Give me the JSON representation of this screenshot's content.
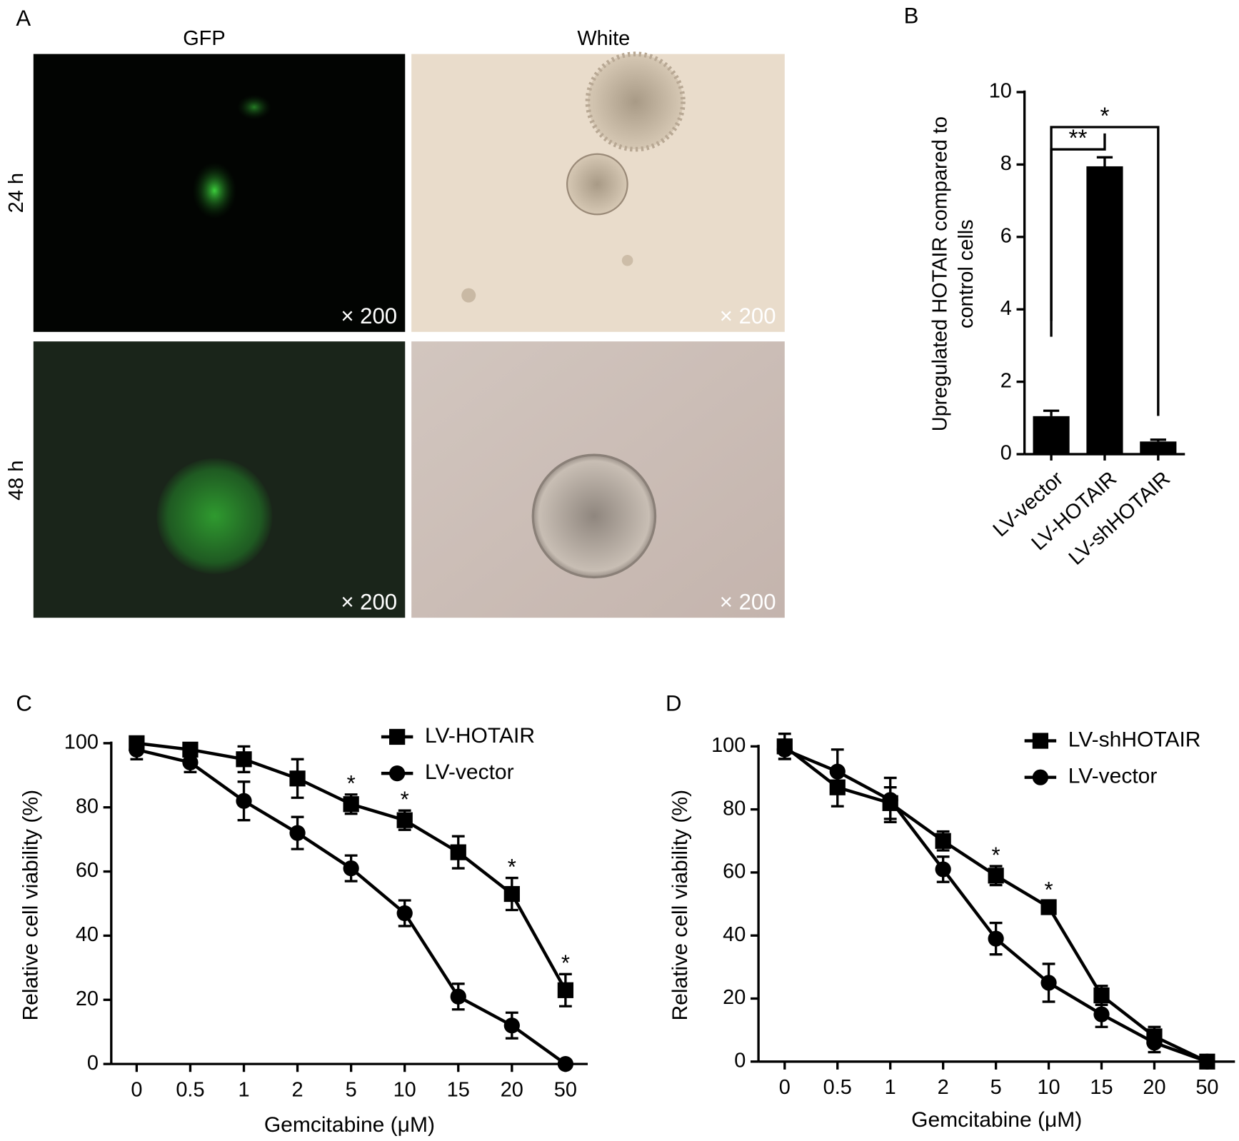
{
  "panel_a": {
    "label": "A",
    "columns": [
      "GFP",
      "White"
    ],
    "rows": [
      "24 h",
      "48 h"
    ],
    "magnification": [
      "× 200",
      "× 200",
      "× 200",
      "× 200"
    ]
  },
  "chart_data": [
    {
      "type": "bar",
      "label": "B",
      "ylabel": [
        "Upregulated HOTAIR compared to",
        "control cells"
      ],
      "categories": [
        "LV-vector",
        "LV-HOTAIR",
        "LV-shHOTAIR"
      ],
      "values": [
        1.05,
        7.95,
        0.35
      ],
      "errors": [
        0.15,
        0.25,
        0.05
      ],
      "color": "#000000",
      "ylim": [
        0,
        10
      ],
      "yticks": [
        0,
        2,
        4,
        6,
        8,
        10
      ],
      "annotations": [
        {
          "text": "**",
          "between": [
            "LV-vector",
            "LV-HOTAIR"
          ]
        },
        {
          "text": "*",
          "between": [
            "LV-vector",
            "LV-shHOTAIR"
          ]
        }
      ]
    },
    {
      "type": "line",
      "label": "C",
      "xlabel": "Gemcitabine (μM)",
      "ylabel": "Relative cell viability (%)",
      "categories": [
        "0",
        "0.5",
        "1",
        "2",
        "5",
        "10",
        "15",
        "20",
        "50"
      ],
      "series": [
        {
          "name": "LV-HOTAIR",
          "marker": "square",
          "color": "#000000",
          "values": [
            100,
            98,
            95,
            89,
            81,
            76,
            66,
            53,
            23
          ],
          "errors": [
            2,
            2,
            4,
            6,
            3,
            3,
            5,
            5,
            5
          ]
        },
        {
          "name": "LV-vector",
          "marker": "circle",
          "color": "#000000",
          "values": [
            98,
            94,
            82,
            72,
            61,
            47,
            21,
            12,
            0
          ],
          "errors": [
            3,
            3,
            6,
            5,
            4,
            4,
            4,
            4,
            0
          ]
        }
      ],
      "significance": [
        null,
        null,
        null,
        null,
        "*",
        "*",
        null,
        "*",
        "*"
      ],
      "ylim": [
        0,
        100
      ],
      "yticks": [
        0,
        20,
        40,
        60,
        80,
        100
      ],
      "legend": "upper right"
    },
    {
      "type": "line",
      "label": "D",
      "xlabel": "Gemcitabine (μM)",
      "ylabel": "Relative cell viability (%)",
      "categories": [
        "0",
        "0.5",
        "1",
        "2",
        "5",
        "10",
        "15",
        "20",
        "50"
      ],
      "series": [
        {
          "name": "LV-shHOTAIR",
          "marker": "square",
          "color": "#000000",
          "values": [
            100,
            87,
            82,
            70,
            59,
            49,
            21,
            8,
            0
          ],
          "errors": [
            4,
            6,
            5,
            3,
            3,
            2,
            3,
            3,
            1
          ]
        },
        {
          "name": "LV-vector",
          "marker": "circle",
          "color": "#000000",
          "values": [
            99,
            92,
            83,
            61,
            39,
            25,
            15,
            6,
            0
          ],
          "errors": [
            3,
            7,
            7,
            4,
            5,
            6,
            4,
            3,
            1
          ]
        }
      ],
      "significance": [
        null,
        null,
        null,
        null,
        "*",
        "*",
        null,
        null,
        null
      ],
      "ylim": [
        0,
        100
      ],
      "yticks": [
        0,
        20,
        40,
        60,
        80,
        100
      ],
      "legend": "upper right"
    }
  ]
}
